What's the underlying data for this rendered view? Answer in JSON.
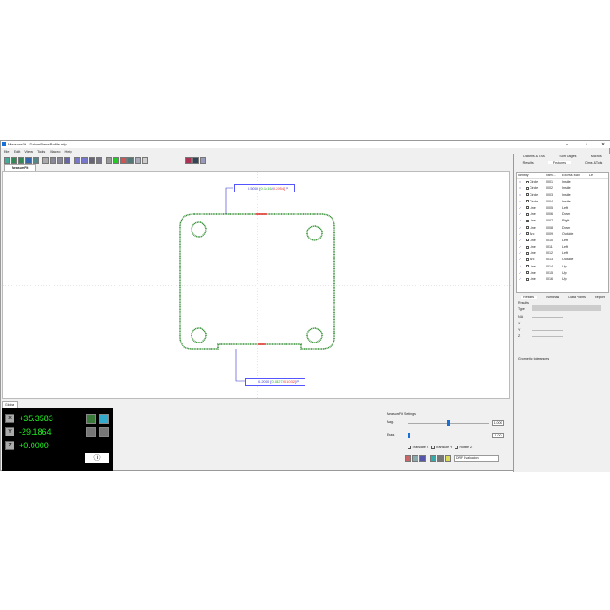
{
  "window": {
    "title": "MeasureFit - DatumPlaneProfile.mfp",
    "min": "–",
    "max": "▫",
    "close": "✕"
  },
  "menu": [
    "File",
    "Edit",
    "View",
    "Tools",
    "Macro",
    "Help"
  ],
  "main_tab": "MeasureFit",
  "bottom_tab": "Global",
  "callouts": {
    "top": {
      "nominal": "0.5000",
      "bracket_open": "[",
      "lower": "0.1416",
      "sep": "/",
      "upper": "0.2954]",
      "flag": "P"
    },
    "bottom": {
      "nominal": "0.2000",
      "bracket_open": "[",
      "lower": "0.0827",
      "sep": "/",
      "upper": "0.1032]",
      "flag": "P"
    }
  },
  "dro": {
    "x_label": "X",
    "y_label": "Y",
    "z_label": "Z",
    "x": "+35.3583",
    "y": "-29.1864",
    "z": "+0.0000",
    "info": "ⓘ"
  },
  "settings": {
    "title": "MeasureFit Settings",
    "mag_label": "Mag.",
    "mag_value": "1.000",
    "mag_fraction": 0.5,
    "exag_label": "Exag.",
    "exag_value": "1.00",
    "exag_fraction": 0.0,
    "translate_x": "Translate X",
    "translate_y": "Translate Y",
    "rotate_z": "Rotate Z",
    "evaluation": "DRF Evaluation"
  },
  "right_panel": {
    "tabs_top": [
      "Datums & CSs",
      "Soft Gages",
      "Macros"
    ],
    "tabs_bottom": [
      "Results",
      "Features",
      "Dims & Tols"
    ],
    "columns": [
      "Identity",
      "Num...",
      "Excess Mat'l",
      "Le"
    ],
    "features": [
      [
        "Circle",
        "0001",
        "Inside"
      ],
      [
        "Circle",
        "0002",
        "Inside"
      ],
      [
        "Circle",
        "0003",
        "Inside"
      ],
      [
        "Circle",
        "0004",
        "Inside"
      ],
      [
        "Line",
        "0005",
        "Left"
      ],
      [
        "Line",
        "0006",
        "Down"
      ],
      [
        "Line",
        "0007",
        "Right"
      ],
      [
        "Line",
        "0008",
        "Down"
      ],
      [
        "Arc",
        "0009",
        "Outside"
      ],
      [
        "Line",
        "0010",
        "Left"
      ],
      [
        "Line",
        "0011",
        "Left"
      ],
      [
        "Line",
        "0012",
        "Left"
      ],
      [
        "Arc",
        "0013",
        "Outside"
      ],
      [
        "Line",
        "0014",
        "Up"
      ],
      [
        "Line",
        "0015",
        "Up"
      ],
      [
        "Line",
        "0016",
        "Up"
      ]
    ],
    "result_tabs": [
      "Results",
      "Nominals",
      "Data Points",
      "Report"
    ],
    "results_label": "Results",
    "type_label": "Type",
    "fields": [
      "N-A",
      "X",
      "Y",
      "Z"
    ],
    "geo_tol": "Geometric tolerances"
  },
  "colors": {
    "profile": "#2a8a2a",
    "callout": "#5555ff",
    "dro_text": "#22ee22",
    "highlight": "#e33333"
  }
}
